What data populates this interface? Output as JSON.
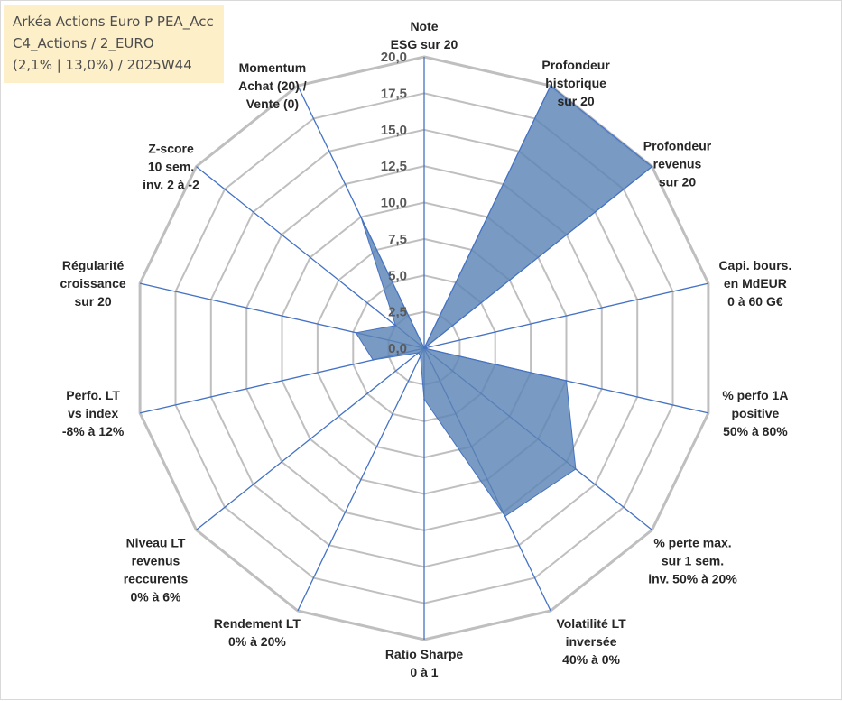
{
  "title_box": {
    "line1": "Arkéa Actions Euro P PEA_Acc",
    "line2": "C4_Actions / 2_EURO",
    "line3": "(2,1% | 13,0%) / 2025W44"
  },
  "colors": {
    "fill": "#5b84b5",
    "grid": "#bfbfbf",
    "spoke": "#4472c4",
    "title_bg": "#fdefc5"
  },
  "chart_data": {
    "type": "radar",
    "rmin": 0,
    "rmax": 20,
    "tick_labels": [
      "0,0",
      "2,5",
      "5,0",
      "7,5",
      "10,0",
      "12,5",
      "15,0",
      "17,5",
      "20,0"
    ],
    "axes": [
      {
        "label": [
          "Note",
          "ESG sur 20"
        ],
        "value": 0
      },
      {
        "label": [
          "Profondeur",
          "historique",
          "sur 20"
        ],
        "value": 20
      },
      {
        "label": [
          "Profondeur",
          "revenus",
          "sur 20"
        ],
        "value": 20
      },
      {
        "label": [
          "Capi. bours.",
          "en MdEUR",
          "0 à 60 G€"
        ],
        "value": 0
      },
      {
        "label": [
          "% perfo 1A",
          "positive",
          "50% à 80%"
        ],
        "value": 10
      },
      {
        "label": [
          "% perte max.",
          "sur 1 sem.",
          "inv. 50% à 20%"
        ],
        "value": 13.3
      },
      {
        "label": [
          "Volatilité LT",
          "inversée",
          "40% à 0%"
        ],
        "value": 12.8
      },
      {
        "label": [
          "Ratio Sharpe",
          "0 à 1"
        ],
        "value": 3.5
      },
      {
        "label": [
          "Rendement LT",
          "0% à 20%"
        ],
        "value": 0.6
      },
      {
        "label": [
          "Niveau LT",
          "revenus",
          "reccurents",
          "0% à 6%"
        ],
        "value": 0.5
      },
      {
        "label": [
          "Perfo. LT",
          "vs index",
          "-8% à 12%"
        ],
        "value": 3.6
      },
      {
        "label": [
          "Régularité",
          "croissance",
          "sur 20"
        ],
        "value": 4.8
      },
      {
        "label": [
          "Z-score",
          "10 sem.",
          "inv. 2 à -2"
        ],
        "value": 2.5
      },
      {
        "label": [
          "Momentum",
          "Achat (20) /",
          "Vente (0)"
        ],
        "value": 10
      }
    ]
  }
}
